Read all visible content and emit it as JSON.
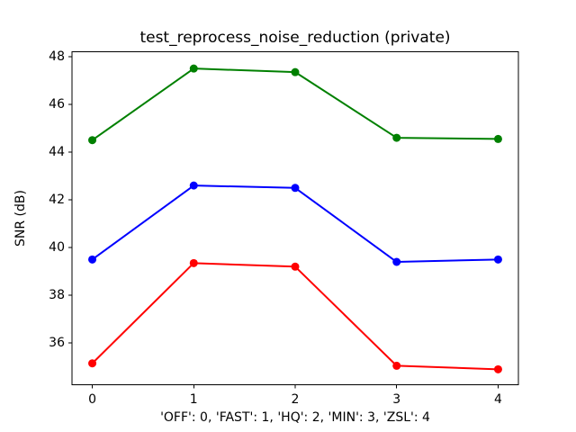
{
  "figure": {
    "background": "#ffffff",
    "axis_color": "#000000"
  },
  "chart_data": {
    "type": "line",
    "title": "test_reprocess_noise_reduction (private)",
    "xlabel": "'OFF': 0, 'FAST': 1, 'HQ': 2, 'MIN': 3, 'ZSL': 4",
    "ylabel": "SNR (dB)",
    "x": [
      0,
      1,
      2,
      3,
      4
    ],
    "xtick_labels": [
      "0",
      "1",
      "2",
      "3",
      "4"
    ],
    "ytick_labels": [
      "36",
      "38",
      "40",
      "42",
      "44",
      "46",
      "48"
    ],
    "xticks": [
      0,
      1,
      2,
      3,
      4
    ],
    "yticks": [
      36,
      38,
      40,
      42,
      44,
      46,
      48
    ],
    "xlim": [
      -0.2,
      4.2
    ],
    "ylim": [
      34.25,
      48.2
    ],
    "grid": false,
    "legend_position": "none",
    "series": [
      {
        "name": "green",
        "color": "#008000",
        "values": [
          44.5,
          47.5,
          47.35,
          44.6,
          44.55
        ]
      },
      {
        "name": "blue",
        "color": "#0000ff",
        "values": [
          39.5,
          42.6,
          42.5,
          39.4,
          39.5
        ]
      },
      {
        "name": "red",
        "color": "#ff0000",
        "values": [
          35.15,
          39.35,
          39.2,
          35.05,
          34.9
        ]
      }
    ]
  }
}
